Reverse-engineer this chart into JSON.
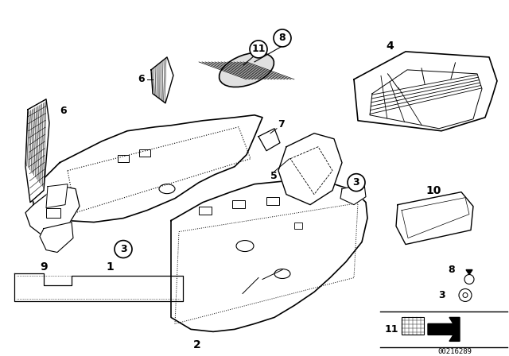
{
  "bg_color": "#ffffff",
  "diagram_id": "00216289",
  "line_color": "#000000"
}
